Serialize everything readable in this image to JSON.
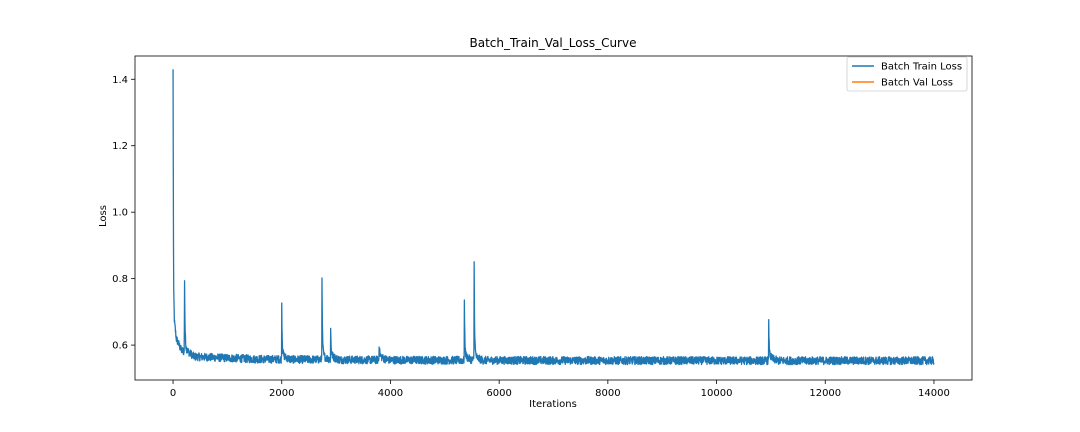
{
  "chart_data": {
    "type": "line",
    "title": "Batch_Train_Val_Loss_Curve",
    "xlabel": "Iterations",
    "ylabel": "Loss",
    "xlim": [
      -700,
      14700
    ],
    "ylim": [
      0.495,
      1.47
    ],
    "xticks": [
      0,
      2000,
      4000,
      6000,
      8000,
      10000,
      12000,
      14000
    ],
    "yticks": [
      0.6,
      0.8,
      1.0,
      1.2,
      1.4
    ],
    "grid": false,
    "legend_position": "top-right",
    "colors": {
      "train": "#1f77b4",
      "val": "#ff7f0e"
    },
    "series": [
      {
        "name": "Batch Train Loss",
        "color": "#1f77b4",
        "n_points": 14000,
        "baseline_loss": 0.553,
        "noise_band": 0.012,
        "early_decay": [
          {
            "x": 0,
            "y": 1.43
          },
          {
            "x": 10,
            "y": 0.78
          },
          {
            "x": 25,
            "y": 0.67
          },
          {
            "x": 60,
            "y": 0.62
          },
          {
            "x": 150,
            "y": 0.585
          },
          {
            "x": 400,
            "y": 0.565
          },
          {
            "x": 1500,
            "y": 0.558
          }
        ],
        "spikes": [
          {
            "x": 210,
            "y": 0.81
          },
          {
            "x": 2000,
            "y": 0.7
          },
          {
            "x": 2740,
            "y": 0.79
          },
          {
            "x": 2900,
            "y": 0.625
          },
          {
            "x": 3790,
            "y": 0.59
          },
          {
            "x": 5360,
            "y": 0.71
          },
          {
            "x": 5540,
            "y": 0.83
          },
          {
            "x": 10960,
            "y": 0.645
          }
        ]
      },
      {
        "name": "Batch Val Loss",
        "color": "#ff7f0e",
        "values": []
      }
    ]
  }
}
